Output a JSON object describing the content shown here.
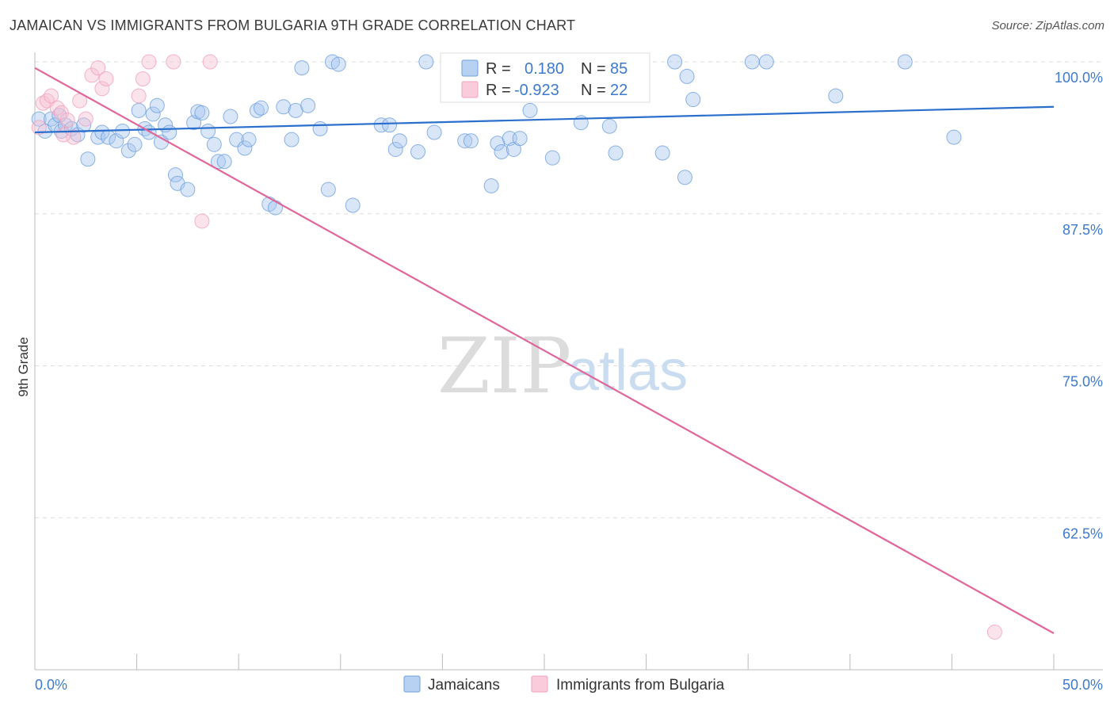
{
  "title": "JAMAICAN VS IMMIGRANTS FROM BULGARIA 9TH GRADE CORRELATION CHART",
  "source": "Source: ZipAtlas.com",
  "watermark": {
    "zip": "ZIP",
    "atlas": "atlas"
  },
  "colors": {
    "blue": "#6fa0e0",
    "blue_line": "#2b6fcc",
    "pink": "#f2a0bb",
    "pink_line": "#e0669a",
    "tick": "#3d7acc"
  },
  "legend": {
    "rows": [
      {
        "r_label": "R =",
        "r_value": "0.180",
        "n_label": "N =",
        "n_value": "85"
      },
      {
        "r_label": "R =",
        "r_value": "-0.923",
        "n_label": "N =",
        "n_value": "22"
      }
    ]
  },
  "bottom_legend": {
    "series1": "Jamaicans",
    "series2": "Immigrants from Bulgaria"
  },
  "chart_data": {
    "type": "scatter",
    "title": "JAMAICAN VS IMMIGRANTS FROM BULGARIA 9TH GRADE CORRELATION CHART",
    "xlabel": "",
    "ylabel": "9th Grade",
    "xlim": [
      0,
      50
    ],
    "ylim": [
      50,
      100
    ],
    "x_tick_labels": [
      "0.0%",
      "50.0%"
    ],
    "y_ticks": [
      62.5,
      75.0,
      87.5,
      100.0
    ],
    "y_tick_labels": [
      "62.5%",
      "75.0%",
      "87.5%",
      "100.0%"
    ],
    "grid": true,
    "legend_position": "top-center",
    "series": [
      {
        "name": "Jamaicans",
        "trend": {
          "x": [
            0,
            50
          ],
          "y": [
            94.2,
            96.3
          ]
        },
        "points": [
          [
            0.2,
            95.3
          ],
          [
            0.5,
            94.3
          ],
          [
            0.8,
            95.3
          ],
          [
            1.0,
            94.8
          ],
          [
            1.2,
            95.6
          ],
          [
            1.3,
            94.3
          ],
          [
            1.5,
            94.8
          ],
          [
            1.8,
            94.5
          ],
          [
            2.1,
            94.0
          ],
          [
            2.4,
            94.8
          ],
          [
            2.6,
            92.0
          ],
          [
            3.1,
            93.8
          ],
          [
            3.3,
            94.2
          ],
          [
            3.6,
            93.8
          ],
          [
            4.0,
            93.5
          ],
          [
            4.3,
            94.3
          ],
          [
            4.6,
            92.7
          ],
          [
            4.9,
            93.2
          ],
          [
            5.1,
            96.0
          ],
          [
            5.4,
            94.5
          ],
          [
            5.6,
            94.2
          ],
          [
            5.8,
            95.7
          ],
          [
            6.0,
            96.4
          ],
          [
            6.2,
            93.4
          ],
          [
            6.4,
            94.8
          ],
          [
            6.6,
            94.2
          ],
          [
            6.9,
            90.7
          ],
          [
            7.0,
            90.0
          ],
          [
            7.5,
            89.5
          ],
          [
            7.8,
            95.0
          ],
          [
            8.0,
            95.9
          ],
          [
            8.2,
            95.8
          ],
          [
            8.5,
            94.3
          ],
          [
            8.8,
            93.2
          ],
          [
            9.0,
            91.8
          ],
          [
            9.3,
            91.8
          ],
          [
            9.6,
            95.5
          ],
          [
            9.9,
            93.6
          ],
          [
            10.3,
            92.9
          ],
          [
            10.5,
            93.6
          ],
          [
            10.9,
            96.0
          ],
          [
            11.1,
            96.2
          ],
          [
            11.5,
            88.3
          ],
          [
            11.8,
            88.0
          ],
          [
            12.2,
            96.3
          ],
          [
            12.6,
            93.6
          ],
          [
            12.8,
            96.0
          ],
          [
            13.1,
            99.5
          ],
          [
            13.4,
            96.4
          ],
          [
            14.0,
            94.5
          ],
          [
            14.4,
            89.5
          ],
          [
            14.6,
            100.0
          ],
          [
            14.9,
            99.8
          ],
          [
            15.6,
            88.2
          ],
          [
            17.0,
            94.8
          ],
          [
            17.4,
            94.8
          ],
          [
            17.7,
            92.8
          ],
          [
            17.9,
            93.5
          ],
          [
            18.8,
            92.6
          ],
          [
            19.2,
            100.0
          ],
          [
            19.6,
            94.2
          ],
          [
            20.7,
            97.3
          ],
          [
            21.1,
            93.5
          ],
          [
            21.4,
            93.5
          ],
          [
            22.4,
            89.8
          ],
          [
            22.7,
            93.3
          ],
          [
            22.9,
            92.6
          ],
          [
            23.3,
            93.7
          ],
          [
            23.5,
            92.8
          ],
          [
            23.8,
            93.7
          ],
          [
            24.3,
            96.0
          ],
          [
            25.4,
            92.1
          ],
          [
            26.8,
            95.0
          ],
          [
            28.2,
            94.7
          ],
          [
            28.5,
            92.5
          ],
          [
            30.8,
            92.5
          ],
          [
            31.4,
            100.0
          ],
          [
            31.9,
            90.5
          ],
          [
            32.3,
            96.9
          ],
          [
            35.2,
            100.0
          ],
          [
            35.9,
            100.0
          ],
          [
            39.3,
            97.2
          ],
          [
            42.7,
            100.0
          ],
          [
            45.1,
            93.8
          ],
          [
            32.0,
            98.8
          ]
        ]
      },
      {
        "name": "Immigrants from Bulgaria",
        "trend": {
          "x": [
            0,
            50
          ],
          "y": [
            99.5,
            53.0
          ]
        },
        "points": [
          [
            0.2,
            94.6
          ],
          [
            0.4,
            96.6
          ],
          [
            0.6,
            96.8
          ],
          [
            0.8,
            97.2
          ],
          [
            1.1,
            96.2
          ],
          [
            1.3,
            95.8
          ],
          [
            1.6,
            95.2
          ],
          [
            1.9,
            93.8
          ],
          [
            2.2,
            96.8
          ],
          [
            2.5,
            95.3
          ],
          [
            2.8,
            98.9
          ],
          [
            3.1,
            99.5
          ],
          [
            3.3,
            97.8
          ],
          [
            3.5,
            98.6
          ],
          [
            5.1,
            97.2
          ],
          [
            5.3,
            98.6
          ],
          [
            5.6,
            100.0
          ],
          [
            6.8,
            100.0
          ],
          [
            8.2,
            86.9
          ],
          [
            8.6,
            100.0
          ],
          [
            47.1,
            53.1
          ],
          [
            1.4,
            94.0
          ]
        ]
      }
    ]
  }
}
